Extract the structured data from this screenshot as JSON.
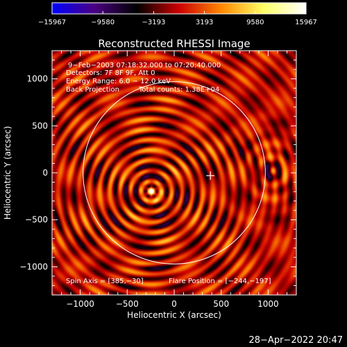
{
  "chart_data": {
    "type": "heatmap",
    "title": "Reconstructed RHESSI Image",
    "xlabel": "Heliocentric X (arcsec)",
    "ylabel": "Heliocentric Y (arcsec)",
    "xlim": [
      -1300,
      1300
    ],
    "ylim": [
      -1300,
      1300
    ],
    "xticks": [
      -1000,
      -500,
      0,
      500,
      1000
    ],
    "yticks": [
      -1000,
      -500,
      0,
      500,
      1000
    ],
    "xtick_labels": [
      "−1000",
      "−500",
      "0",
      "500",
      "1000"
    ],
    "ytick_labels": [
      "−1000",
      "−500",
      "0",
      "500",
      "1000"
    ],
    "colorbar": {
      "min": -15967,
      "max": 15967,
      "tick_values": [
        -15967,
        -9580,
        -3193,
        3193,
        9580,
        15967
      ],
      "tick_labels": [
        "−15967",
        "−9580",
        "−3193",
        "3193",
        "9580",
        "15967"
      ],
      "colors": [
        "#0000ff",
        "#4b0082",
        "#000000",
        "#cc0000",
        "#ff8800",
        "#ffff66",
        "#ffffff"
      ]
    },
    "source": {
      "x": -244,
      "y": -197,
      "peak": 15967
    },
    "ring_period_arcsec": 110,
    "solar_disk": {
      "center": [
        0,
        0
      ],
      "radius": 970,
      "color": "#ffffff"
    },
    "spin_axis": {
      "x": 385,
      "y": -30,
      "marker": "+"
    },
    "annotations": [
      "9−Feb−2003 07:18:32.000 to 07:20:40.000",
      "Detectors: 7F 8F 9F, Att 0",
      "Energy Range: 6.0 − 12.0 keV",
      "Back Projection",
      "Total counts: 1.38E+04"
    ],
    "footer": {
      "spin_axis_text": "Spin Axis = [385,−30]",
      "flare_position_text": "Flare Position = [−244,−197]"
    }
  },
  "timestamp": "28−Apr−2022 20:47"
}
